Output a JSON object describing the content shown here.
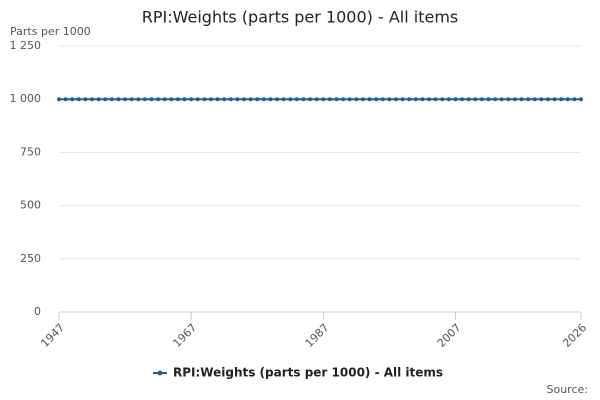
{
  "chart_data": {
    "type": "line",
    "title": "RPI:Weights (parts per 1000) - All items",
    "y_label": "Parts per 1000",
    "source": "Source:",
    "x": [
      1947,
      1948,
      1949,
      1950,
      1951,
      1952,
      1953,
      1954,
      1955,
      1956,
      1957,
      1958,
      1959,
      1960,
      1961,
      1962,
      1963,
      1964,
      1965,
      1966,
      1967,
      1968,
      1969,
      1970,
      1971,
      1972,
      1973,
      1974,
      1975,
      1976,
      1977,
      1978,
      1979,
      1980,
      1981,
      1982,
      1983,
      1984,
      1985,
      1986,
      1987,
      1988,
      1989,
      1990,
      1991,
      1992,
      1993,
      1994,
      1995,
      1996,
      1997,
      1998,
      1999,
      2000,
      2001,
      2002,
      2003,
      2004,
      2005,
      2006,
      2007,
      2008,
      2009,
      2010,
      2011,
      2012,
      2013,
      2014,
      2015,
      2016,
      2017,
      2018,
      2019,
      2020,
      2021,
      2022,
      2023,
      2024,
      2025,
      2026
    ],
    "series": [
      {
        "name": "RPI:Weights (parts per 1000) - All items",
        "color": "#206095",
        "values": [
          1000,
          1000,
          1000,
          1000,
          1000,
          1000,
          1000,
          1000,
          1000,
          1000,
          1000,
          1000,
          1000,
          1000,
          1000,
          1000,
          1000,
          1000,
          1000,
          1000,
          1000,
          1000,
          1000,
          1000,
          1000,
          1000,
          1000,
          1000,
          1000,
          1000,
          1000,
          1000,
          1000,
          1000,
          1000,
          1000,
          1000,
          1000,
          1000,
          1000,
          1000,
          1000,
          1000,
          1000,
          1000,
          1000,
          1000,
          1000,
          1000,
          1000,
          1000,
          1000,
          1000,
          1000,
          1000,
          1000,
          1000,
          1000,
          1000,
          1000,
          1000,
          1000,
          1000,
          1000,
          1000,
          1000,
          1000,
          1000,
          1000,
          1000,
          1000,
          1000,
          1000,
          1000,
          1000,
          1000,
          1000,
          1000,
          1000,
          1000
        ]
      }
    ],
    "xlim": [
      1947,
      2026
    ],
    "xticks": [
      1947,
      1967,
      1987,
      2007,
      2026
    ],
    "ylim": [
      0,
      1250
    ],
    "yticks": [
      0,
      250,
      500,
      750,
      {
        "value": 1000,
        "label": "1 000"
      },
      {
        "value": 1250,
        "label": "1 250"
      }
    ],
    "grid": true
  }
}
